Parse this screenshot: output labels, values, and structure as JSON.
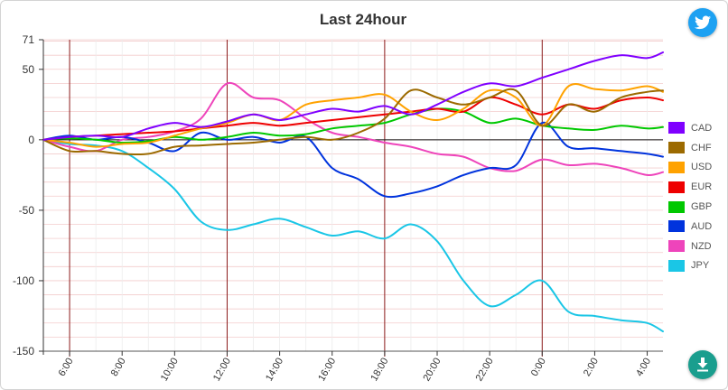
{
  "header": {
    "title": "Last 24hour"
  },
  "buttons": {
    "share_icon": "twitter-bird-icon",
    "download_icon": "download-arrow-icon"
  },
  "chart_data": {
    "type": "line",
    "title": "Last 24hour",
    "xlabel": "",
    "ylabel": "",
    "ylim": [
      -150,
      71
    ],
    "y_ticks": [
      71,
      50,
      0,
      -50,
      -100,
      -150
    ],
    "x_ticks": [
      "6:00",
      "8:00",
      "10:00",
      "12:00",
      "14:00",
      "16:00",
      "18:00",
      "20:00",
      "22:00",
      "0:00",
      "2:00",
      "4:00"
    ],
    "x_range_hours": [
      5.0,
      28.6
    ],
    "vertical_markers_hours": [
      6,
      12,
      18,
      24
    ],
    "zero_line": true,
    "grid": true,
    "legend": {
      "position": "right"
    },
    "series": [
      {
        "name": "CAD",
        "color": "#7f00ff",
        "x": [
          5.0,
          6,
          7,
          8,
          9,
          10,
          11,
          12,
          13,
          14,
          15,
          16,
          17,
          18,
          19,
          20,
          21,
          22,
          23,
          24,
          25,
          26,
          27,
          28,
          28.6
        ],
        "y": [
          0,
          2,
          3,
          2,
          8,
          12,
          9,
          13,
          18,
          14,
          18,
          22,
          20,
          24,
          18,
          25,
          34,
          40,
          38,
          44,
          50,
          56,
          60,
          58,
          62
        ]
      },
      {
        "name": "CHF",
        "color": "#9c6a00",
        "x": [
          5.0,
          6,
          7,
          8,
          9,
          10,
          11,
          12,
          13,
          14,
          15,
          16,
          17,
          18,
          19,
          20,
          21,
          22,
          23,
          24,
          25,
          26,
          27,
          28,
          28.6
        ],
        "y": [
          0,
          -8,
          -8,
          -10,
          -10,
          -5,
          -4,
          -3,
          -2,
          0,
          2,
          0,
          5,
          15,
          35,
          30,
          25,
          30,
          35,
          10,
          25,
          20,
          30,
          34,
          35
        ]
      },
      {
        "name": "USD",
        "color": "#ffa200",
        "x": [
          5.0,
          6,
          7,
          8,
          9,
          10,
          11,
          12,
          13,
          14,
          15,
          16,
          17,
          18,
          19,
          20,
          21,
          22,
          23,
          24,
          25,
          26,
          27,
          28,
          28.6
        ],
        "y": [
          0,
          -2,
          -5,
          -3,
          -2,
          3,
          8,
          12,
          18,
          14,
          25,
          28,
          30,
          32,
          20,
          14,
          22,
          35,
          30,
          10,
          38,
          36,
          35,
          38,
          34
        ]
      },
      {
        "name": "EUR",
        "color": "#ee0000",
        "x": [
          5.0,
          6,
          7,
          8,
          9,
          10,
          11,
          12,
          13,
          14,
          15,
          16,
          17,
          18,
          19,
          20,
          21,
          22,
          23,
          24,
          25,
          26,
          27,
          28,
          28.6
        ],
        "y": [
          0,
          2,
          3,
          4,
          5,
          6,
          8,
          10,
          12,
          10,
          12,
          14,
          16,
          18,
          20,
          22,
          20,
          30,
          25,
          18,
          25,
          22,
          28,
          30,
          28
        ]
      },
      {
        "name": "GBP",
        "color": "#00c800",
        "x": [
          5.0,
          6,
          7,
          8,
          9,
          10,
          11,
          12,
          13,
          14,
          15,
          16,
          17,
          18,
          19,
          20,
          21,
          22,
          23,
          24,
          25,
          26,
          27,
          28,
          28.6
        ],
        "y": [
          0,
          1,
          0,
          -2,
          -1,
          2,
          0,
          2,
          5,
          3,
          4,
          8,
          10,
          12,
          18,
          22,
          20,
          12,
          15,
          10,
          8,
          7,
          10,
          8,
          9
        ]
      },
      {
        "name": "AUD",
        "color": "#0033dd",
        "x": [
          5.0,
          6,
          7,
          8,
          9,
          10,
          11,
          12,
          13,
          14,
          15,
          16,
          17,
          18,
          19,
          20,
          21,
          22,
          23,
          24,
          25,
          26,
          27,
          28,
          28.6
        ],
        "y": [
          0,
          3,
          0,
          2,
          -2,
          -8,
          5,
          0,
          2,
          -2,
          2,
          -20,
          -28,
          -40,
          -38,
          -33,
          -25,
          -20,
          -18,
          12,
          -5,
          -6,
          -8,
          -10,
          -12
        ]
      },
      {
        "name": "NZD",
        "color": "#ee44bb",
        "x": [
          5.0,
          6,
          7,
          8,
          9,
          10,
          11,
          12,
          13,
          14,
          15,
          16,
          17,
          18,
          19,
          20,
          21,
          22,
          23,
          24,
          25,
          26,
          27,
          28,
          28.6
        ],
        "y": [
          0,
          -5,
          -8,
          0,
          2,
          6,
          15,
          40,
          30,
          28,
          15,
          5,
          2,
          -2,
          -5,
          -10,
          -12,
          -20,
          -22,
          -14,
          -18,
          -17,
          -20,
          -25,
          -23
        ]
      },
      {
        "name": "JPY",
        "color": "#1ac6e6",
        "x": [
          5.0,
          6,
          7,
          8,
          9,
          10,
          11,
          12,
          13,
          14,
          15,
          16,
          17,
          18,
          19,
          20,
          21,
          22,
          23,
          24,
          25,
          26,
          27,
          28,
          28.6
        ],
        "y": [
          0,
          -3,
          -4,
          -8,
          -20,
          -35,
          -58,
          -64,
          -60,
          -56,
          -62,
          -68,
          -65,
          -70,
          -60,
          -72,
          -100,
          -118,
          -110,
          -100,
          -122,
          -125,
          -128,
          -130,
          -136
        ]
      }
    ]
  }
}
